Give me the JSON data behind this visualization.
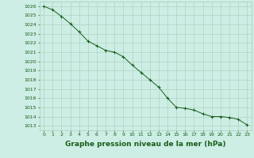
{
  "x": [
    0,
    1,
    2,
    3,
    4,
    5,
    6,
    7,
    8,
    9,
    10,
    11,
    12,
    13,
    14,
    15,
    16,
    17,
    18,
    19,
    20,
    21,
    22,
    23
  ],
  "y": [
    1026.0,
    1025.6,
    1024.9,
    1024.1,
    1023.2,
    1022.2,
    1021.7,
    1021.2,
    1021.0,
    1020.5,
    1019.6,
    1018.8,
    1018.0,
    1017.2,
    1016.0,
    1015.0,
    1014.9,
    1014.7,
    1014.3,
    1014.0,
    1014.0,
    1013.9,
    1013.7,
    1013.1
  ],
  "line_color": "#1a5c1a",
  "marker": "+",
  "bg_color": "#cceee4",
  "grid_color": "#aaccbb",
  "xlabel": "Graphe pression niveau de la mer (hPa)",
  "xlabel_color": "#1a5c1a",
  "ylabel_ticks": [
    1013,
    1014,
    1015,
    1016,
    1017,
    1018,
    1019,
    1020,
    1021,
    1022,
    1023,
    1024,
    1025,
    1026
  ],
  "ylim": [
    1012.5,
    1026.5
  ],
  "xlim": [
    -0.5,
    23.5
  ],
  "xticks": [
    0,
    1,
    2,
    3,
    4,
    5,
    6,
    7,
    8,
    9,
    10,
    11,
    12,
    13,
    14,
    15,
    16,
    17,
    18,
    19,
    20,
    21,
    22,
    23
  ],
  "tick_color": "#1a5c1a",
  "tick_fontsize": 4.5,
  "xlabel_fontsize": 6.5,
  "line_width": 0.7,
  "marker_size": 3.0,
  "marker_edge_width": 0.7
}
